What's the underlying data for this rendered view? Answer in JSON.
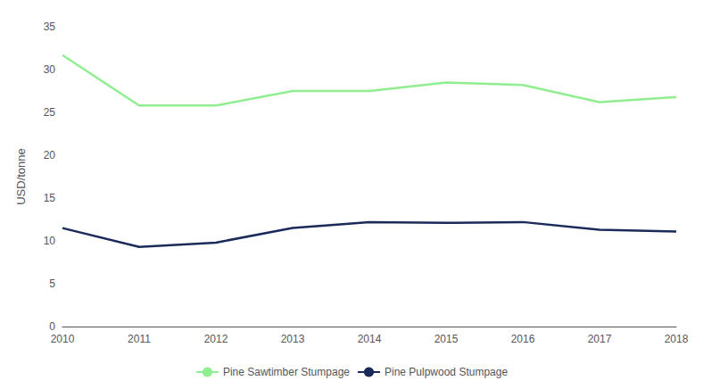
{
  "chart_data": {
    "type": "line",
    "categories": [
      "2010",
      "2011",
      "2012",
      "2013",
      "2014",
      "2015",
      "2016",
      "2017",
      "2018"
    ],
    "series": [
      {
        "name": "Pine Sawtimber Stumpage",
        "color": "#90ee90",
        "values": [
          31.7,
          25.8,
          25.8,
          27.5,
          27.5,
          28.5,
          28.2,
          26.2,
          26.8
        ]
      },
      {
        "name": "Pine Pulpwood Stumpage",
        "color": "#1a2b5a",
        "values": [
          11.5,
          9.3,
          9.8,
          11.5,
          12.2,
          12.1,
          12.2,
          11.3,
          11.1
        ]
      }
    ],
    "ylabel": "USD/tonne",
    "ylim": [
      0,
      35
    ],
    "yticks": [
      0,
      5,
      10,
      15,
      20,
      25,
      30,
      35
    ],
    "grid": false,
    "legend": "bottom"
  }
}
